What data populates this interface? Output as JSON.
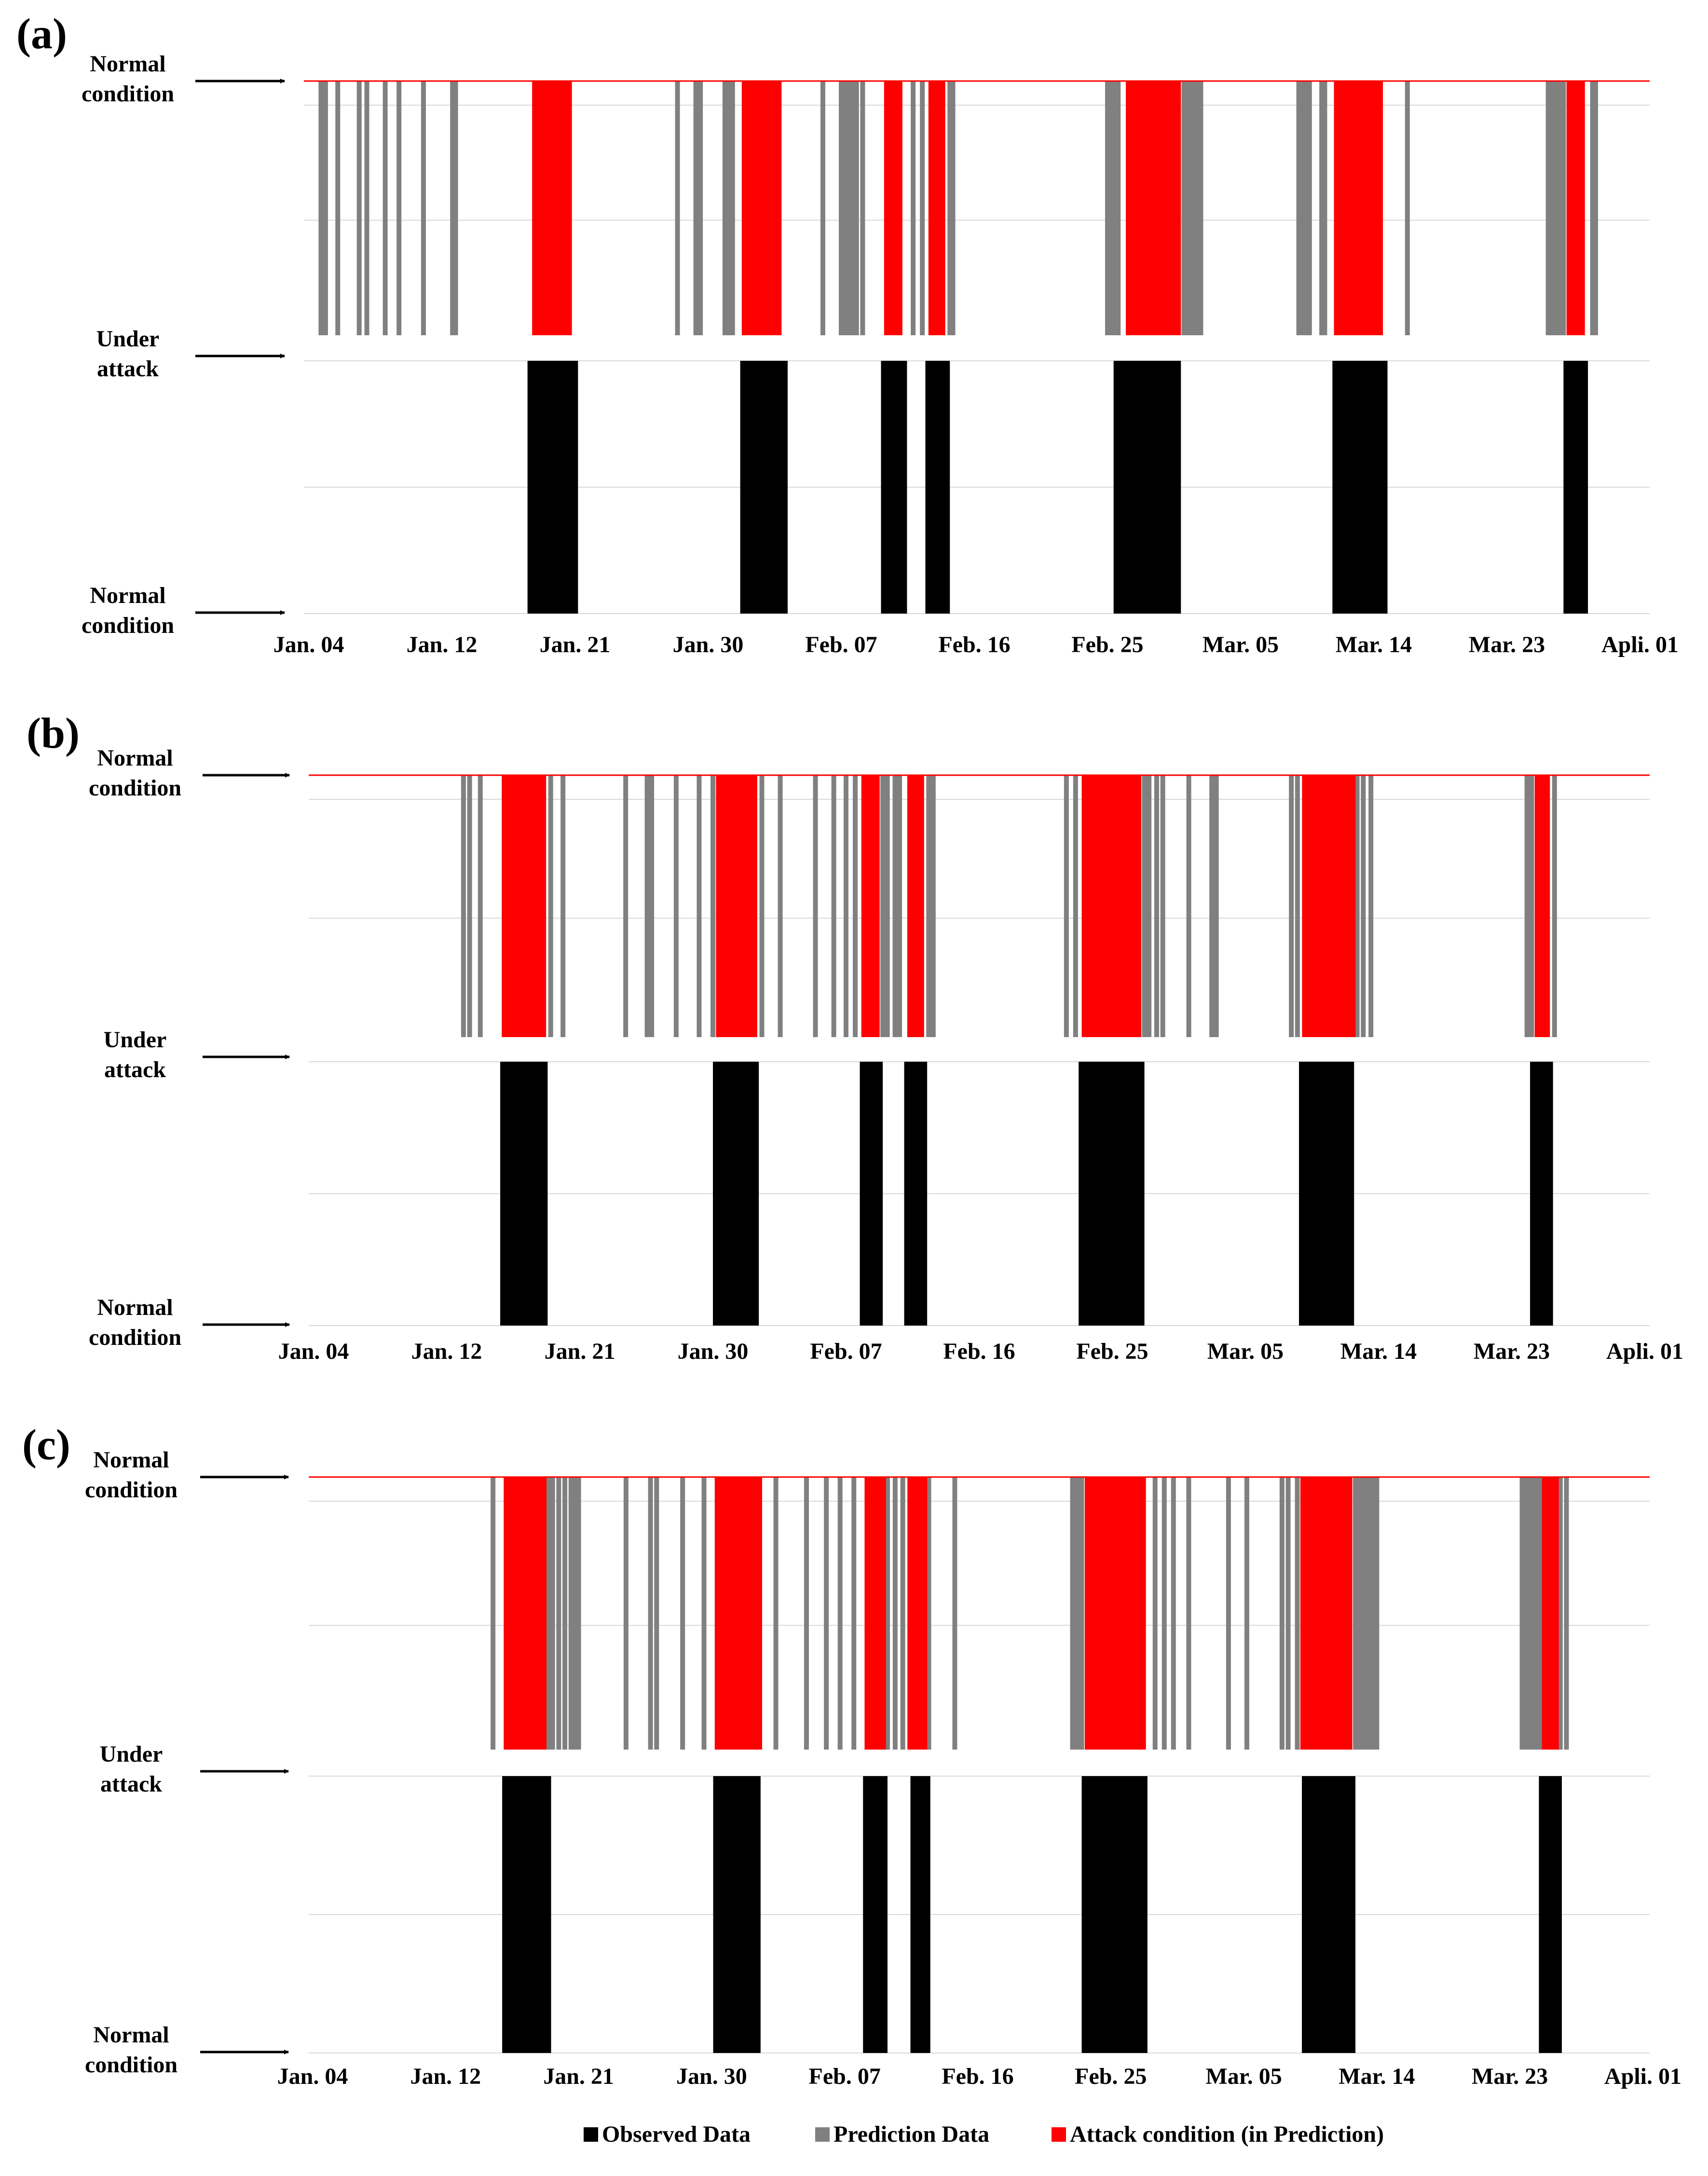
{
  "chart_data": [
    {
      "panel": "(a)",
      "type": "bar",
      "x_tick_labels": [
        "Jan. 04",
        "Jan. 12",
        "Jan. 21",
        "Jan. 30",
        "Feb. 07",
        "Feb. 16",
        "Feb. 25",
        "Mar. 05",
        "Mar. 14",
        "Mar. 23",
        "Apli. 01"
      ],
      "state_labels": {
        "top": "Normal condition",
        "middle": "Under attack",
        "bottom": "Normal condition"
      },
      "observed_attack_day_ranges": [
        [
          14.3,
          17.6
        ],
        [
          28.2,
          31.3
        ],
        [
          37.4,
          39.1
        ],
        [
          40.3,
          41.9
        ],
        [
          52.6,
          57.0
        ],
        [
          66.9,
          70.5
        ],
        [
          82.0,
          83.6
        ]
      ],
      "predicted_attack_day_ranges": [
        [
          14.6,
          17.2
        ],
        [
          28.3,
          30.9
        ],
        [
          37.6,
          38.8
        ],
        [
          40.5,
          41.6
        ],
        [
          53.4,
          57.0
        ],
        [
          67.0,
          70.2
        ],
        [
          82.2,
          83.4
        ]
      ],
      "prediction_alarm_days": [
        0.8,
        1.0,
        1.1,
        1.9,
        3.3,
        3.8,
        5.0,
        5.9,
        7.5,
        9.4,
        9.6,
        24.1,
        25.3,
        25.5,
        25.6,
        27.2,
        27.5,
        27.7,
        33.6,
        34.8,
        35.1,
        35.2,
        35.5,
        35.8,
        36.2,
        39.5,
        40.1,
        41.9,
        42.1,
        52.2,
        52.4,
        52.5,
        52.7,
        52.9,
        57.2,
        57.5,
        57.8,
        58.0,
        58.3,
        64.7,
        64.9,
        65.1,
        65.4,
        66.2,
        66.4,
        71.8,
        81.0,
        81.2,
        81.4,
        81.7,
        82.0,
        83.9,
        84.1
      ]
    },
    {
      "panel": "(b)",
      "type": "bar",
      "x_tick_labels": [
        "Jan. 04",
        "Jan. 12",
        "Jan. 21",
        "Jan. 30",
        "Feb. 07",
        "Feb. 16",
        "Feb. 25",
        "Mar. 05",
        "Mar. 14",
        "Mar. 23",
        "Apli. 01"
      ],
      "state_labels": {
        "top": "Normal condition",
        "middle": "Under attack",
        "bottom": "Normal condition"
      },
      "observed_attack_day_ranges": [
        [
          12.2,
          15.3
        ],
        [
          26.1,
          29.1
        ],
        [
          35.7,
          37.2
        ],
        [
          38.6,
          40.1
        ],
        [
          50.0,
          54.3
        ],
        [
          64.4,
          68.0
        ],
        [
          79.5,
          81.0
        ]
      ],
      "predicted_attack_day_ranges": [
        [
          12.3,
          15.2
        ],
        [
          26.3,
          29.0
        ],
        [
          35.8,
          37.0
        ],
        [
          38.8,
          39.9
        ],
        [
          50.2,
          54.1
        ],
        [
          64.6,
          68.1
        ],
        [
          79.8,
          80.8
        ]
      ],
      "prediction_alarm_days": [
        9.8,
        10.2,
        10.9,
        15.5,
        16.3,
        20.4,
        21.8,
        22.1,
        23.7,
        25.2,
        26.1,
        29.3,
        30.5,
        32.8,
        34.0,
        34.8,
        35.4,
        37.2,
        37.5,
        38.0,
        38.3,
        40.2,
        40.5,
        49.2,
        49.8,
        54.3,
        54.6,
        55.1,
        55.5,
        57.2,
        58.7,
        59.0,
        63.9,
        64.3,
        68.2,
        68.6,
        69.1,
        79.3,
        79.6,
        80.1,
        81.1
      ]
    },
    {
      "panel": "(c)",
      "type": "bar",
      "x_tick_labels": [
        "Jan. 04",
        "Jan. 12",
        "Jan. 21",
        "Jan. 30",
        "Feb. 07",
        "Feb. 16",
        "Feb. 25",
        "Mar. 05",
        "Mar. 14",
        "Mar. 23",
        "Apli. 01"
      ],
      "state_labels": {
        "top": "Normal condition",
        "middle": "Under attack",
        "bottom": "Normal condition"
      },
      "observed_attack_day_ranges": [
        [
          12.4,
          15.6
        ],
        [
          26.2,
          29.3
        ],
        [
          36.0,
          37.6
        ],
        [
          39.1,
          40.4
        ],
        [
          50.3,
          54.6
        ],
        [
          64.7,
          68.2
        ],
        [
          80.2,
          81.7
        ]
      ],
      "predicted_attack_day_ranges": [
        [
          12.5,
          15.3
        ],
        [
          26.3,
          29.4
        ],
        [
          36.1,
          37.5
        ],
        [
          38.9,
          40.2
        ],
        [
          50.5,
          54.5
        ],
        [
          64.6,
          68.0
        ],
        [
          80.4,
          81.5
        ]
      ],
      "prediction_alarm_days": [
        11.8,
        15.4,
        15.7,
        16.1,
        16.5,
        16.9,
        17.2,
        17.4,
        20.5,
        22.1,
        22.5,
        24.2,
        25.6,
        30.3,
        32.3,
        33.6,
        34.5,
        35.4,
        37.6,
        38.1,
        38.6,
        40.3,
        42.0,
        49.7,
        50.0,
        50.3,
        55.1,
        55.7,
        56.3,
        57.3,
        59.9,
        61.1,
        63.4,
        63.8,
        64.4,
        68.2,
        68.4,
        68.7,
        69.0,
        69.3,
        69.6,
        79.1,
        79.4,
        79.7,
        80.0,
        80.3,
        80.6,
        81.6,
        82.0
      ]
    }
  ],
  "legend": {
    "items": [
      {
        "label": "Observed Data",
        "color": "#000000"
      },
      {
        "label": "Prediction Data",
        "color": "#808080"
      },
      {
        "label": "Attack condition (in Prediction)",
        "color": "#ff0000"
      }
    ]
  },
  "colors": {
    "observed": "#000000",
    "prediction": "#808080",
    "attack_prediction": "#ff0000",
    "gridline": "#d9d9d9",
    "normal_line": "#ff0000"
  }
}
